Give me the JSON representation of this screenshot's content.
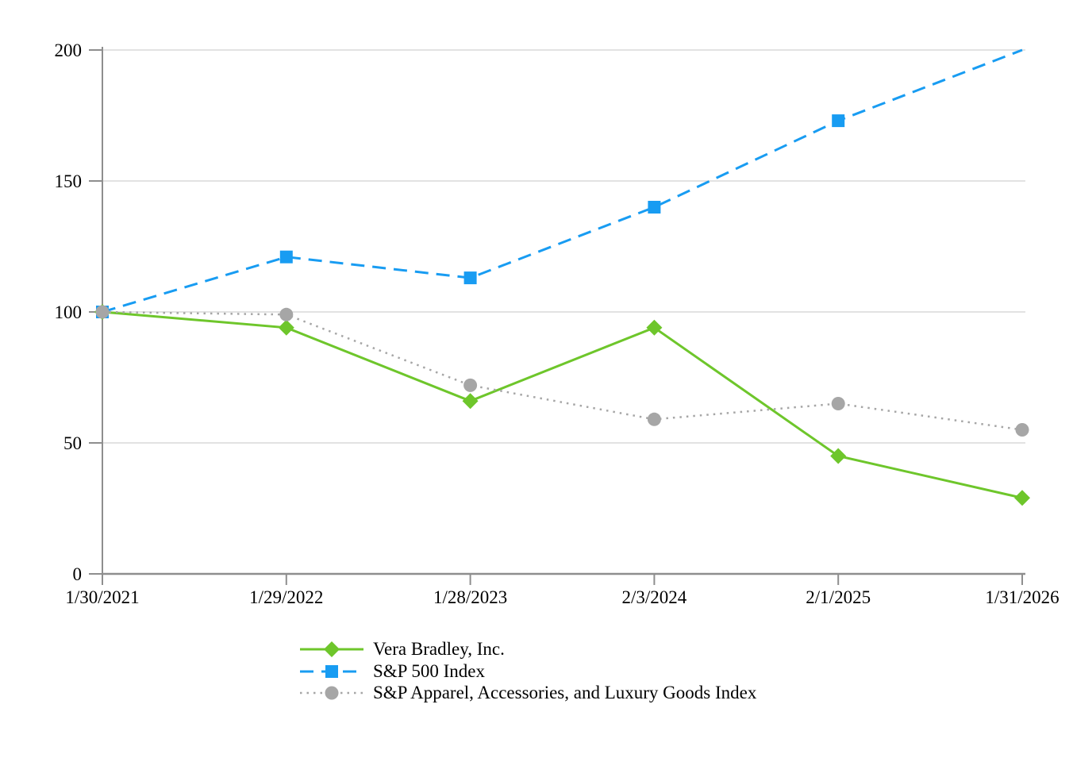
{
  "chart_data": {
    "type": "line",
    "title": "",
    "categories": [
      "1/30/2021",
      "1/29/2022",
      "1/28/2023",
      "2/3/2024",
      "2/1/2025",
      "1/31/2026"
    ],
    "yticks": [
      "0",
      "50",
      "100",
      "150",
      "200"
    ],
    "ytick_values": [
      0,
      50,
      100,
      150,
      200
    ],
    "ylim": [
      0,
      200
    ],
    "grid": "horizontal",
    "legend_position": "bottom-left",
    "series": [
      {
        "name": "Vera Bradley, Inc.",
        "values": [
          100,
          94,
          66,
          94,
          45,
          29
        ],
        "color": "#6EC62B",
        "line_style": "solid",
        "marker": "diamond",
        "last_marker_visible": true
      },
      {
        "name": "S&P 500 Index",
        "values": [
          100,
          121,
          113,
          140,
          173,
          200
        ],
        "color": "#189CF2",
        "line_style": "dashed",
        "marker": "square",
        "last_marker_visible": false
      },
      {
        "name": "S&P Apparel, Accessories, and Luxury Goods Index",
        "values": [
          100,
          99,
          72,
          59,
          65,
          55
        ],
        "color": "#A6A6A6",
        "line_style": "dotted",
        "marker": "circle",
        "last_marker_visible": true
      }
    ]
  },
  "colors": {
    "background": "#FFFFFF",
    "gridline": "#D9D9D9",
    "axis": "#8E8E8E",
    "text": "#000000"
  }
}
